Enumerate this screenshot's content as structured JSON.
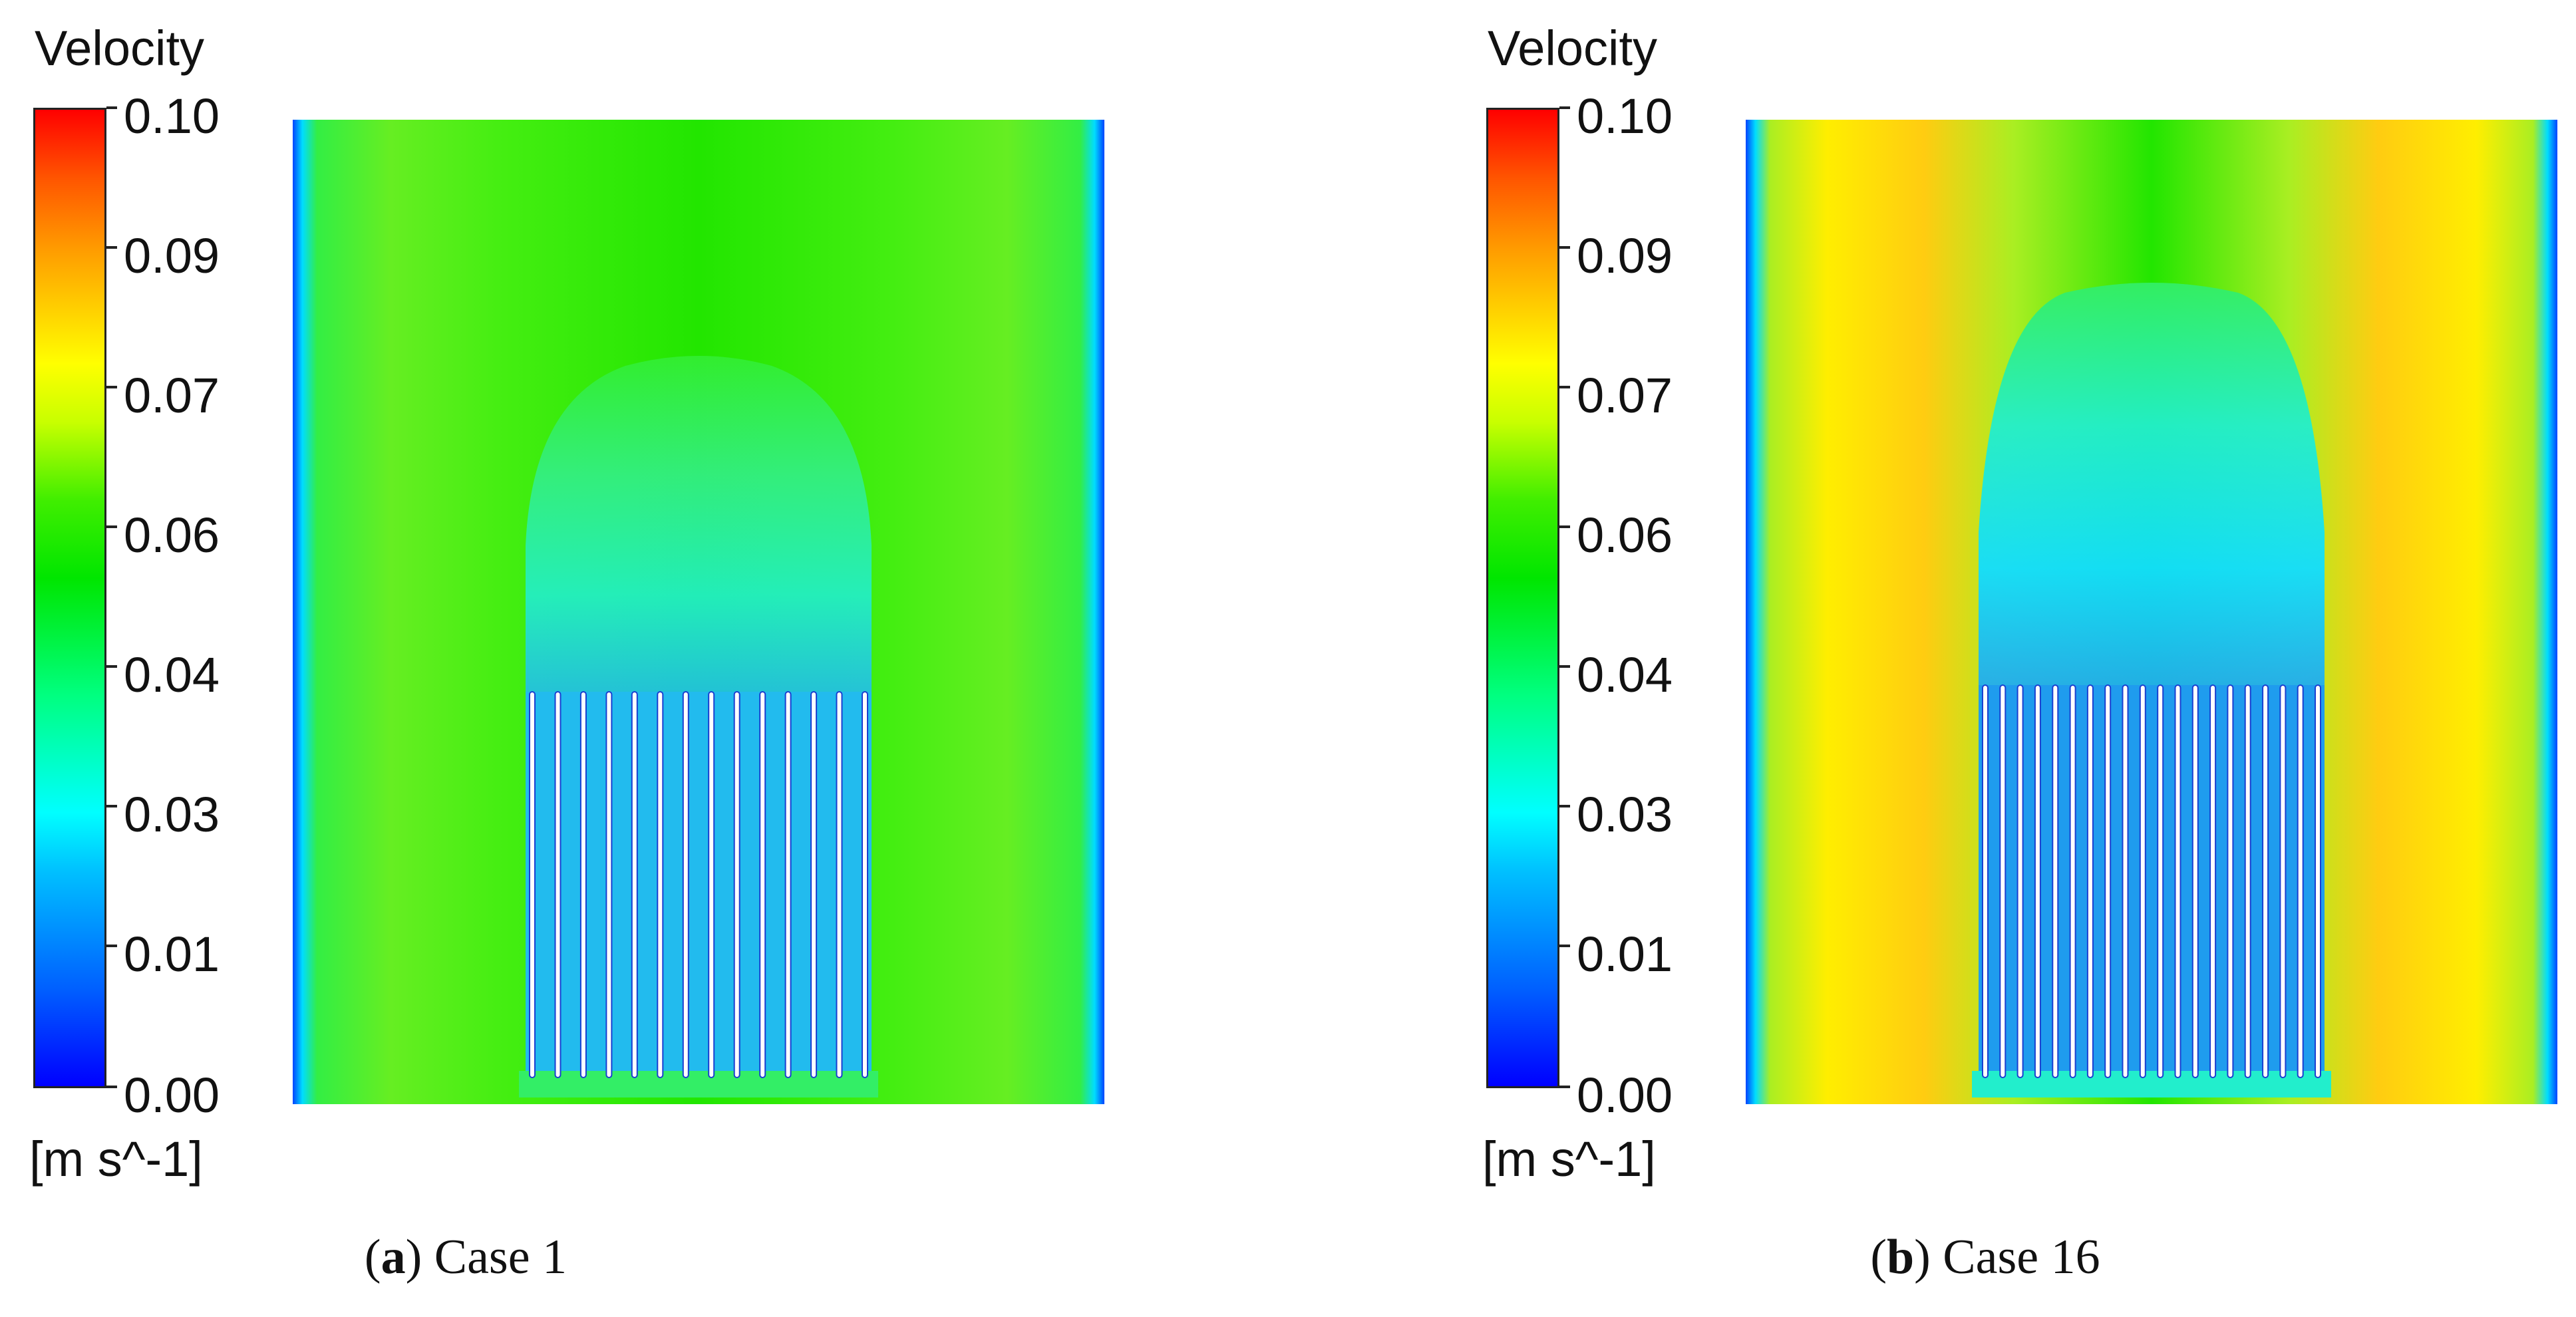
{
  "panels": [
    {
      "id": "a",
      "colorbar_title": "Velocity",
      "unit": "[m s^-1]",
      "ticks": [
        "0.10",
        "0.09",
        "0.07",
        "0.06",
        "0.04",
        "0.03",
        "0.01",
        "0.00"
      ],
      "caption_letter": "a",
      "caption_text": "Case 1",
      "plate_count": 14
    },
    {
      "id": "b",
      "colorbar_title": "Velocity",
      "unit": "[m s^-1]",
      "ticks": [
        "0.10",
        "0.09",
        "0.07",
        "0.06",
        "0.04",
        "0.03",
        "0.01",
        "0.00"
      ],
      "caption_letter": "b",
      "caption_text": "Case 16",
      "plate_count": 20
    }
  ]
}
